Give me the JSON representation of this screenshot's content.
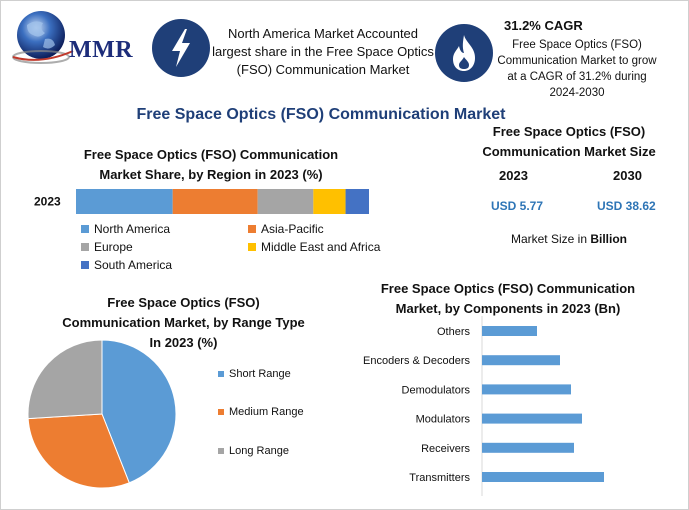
{
  "logo": {
    "text": "MMR"
  },
  "header": {
    "headline": "North America Market Accounted largest share in the Free Space Optics (FSO) Communication Market",
    "cagr_title": "31.2% CAGR",
    "cagr_desc": "Free Space Optics (FSO) Communication Market to grow at a CAGR of 31.2% during 2024-2030",
    "bolt_icon": "lightning-bolt-icon",
    "flame_icon": "flame-icon"
  },
  "main_title": "Free Space Optics (FSO) Communication Market",
  "market_size": {
    "title": "Free Space Optics (FSO) Communication Market Size",
    "year_a": "2023",
    "year_b": "2030",
    "value_a": "USD 5.77",
    "value_b": "USD 38.62",
    "note_prefix": "Market Size in",
    "note_unit": "Billion"
  },
  "colors": {
    "blue": "#5b9bd5",
    "orange": "#ed7d31",
    "gray": "#a5a5a5",
    "yellow": "#ffc000",
    "darkblue": "#4472c4",
    "navy": "#1f3f78",
    "accent": "#2e75b6"
  },
  "chart_data": [
    {
      "type": "bar",
      "orientation": "horizontal-stacked",
      "title": "Free Space Optics (FSO) Communication Market Share, by Region in 2023 (%)",
      "categories": [
        "2023"
      ],
      "series": [
        {
          "name": "North America",
          "values": [
            33
          ]
        },
        {
          "name": "Asia-Pacific",
          "values": [
            29
          ]
        },
        {
          "name": "Europe",
          "values": [
            19
          ]
        },
        {
          "name": "Middle East and Africa",
          "values": [
            11
          ]
        },
        {
          "name": "South America",
          "values": [
            8
          ]
        }
      ],
      "xlim": [
        0,
        100
      ],
      "legend": "bottom"
    },
    {
      "type": "pie",
      "title": "Free Space Optics (FSO) Communication Market, by Range Type In 2023 (%)",
      "labels": [
        "Short Range",
        "Medium Range",
        "Long Range"
      ],
      "values": [
        44,
        30,
        26
      ],
      "legend": "right"
    },
    {
      "type": "bar",
      "orientation": "horizontal",
      "title": "Free Space Optics (FSO) Communication Market, by Components in 2023 (Bn)",
      "categories": [
        "Others",
        "Encoders & Decoders",
        "Demodulators",
        "Modulators",
        "Receivers",
        "Transmitters"
      ],
      "values": [
        0.55,
        0.78,
        0.89,
        1.0,
        0.92,
        1.22
      ],
      "xlim": [
        0,
        1.9
      ]
    }
  ]
}
